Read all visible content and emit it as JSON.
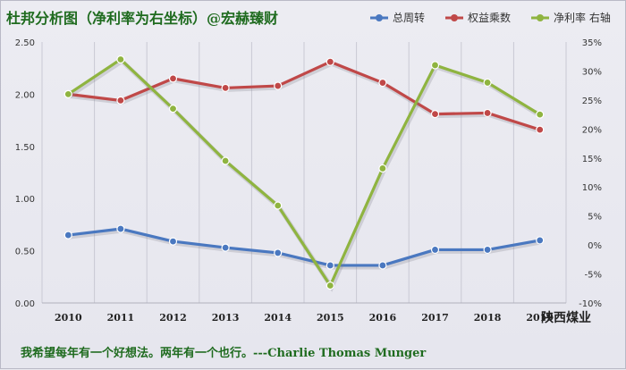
{
  "title": "杜邦分析图（净利率为右坐标）@宏赫臻财",
  "company": "陕西煤业",
  "footer": "我希望每年有一个好想法。两年有一个也行。---Charlie Thomas  Munger",
  "colors": {
    "asset_turnover": "#4a78c0",
    "equity_multiplier": "#c04848",
    "net_margin": "#8fb440",
    "background": "#e8e8ef",
    "title": "#1f6b1f"
  },
  "chart_data": {
    "type": "line",
    "title": "杜邦分析图（净利率为右坐标）@宏赫臻财",
    "x": [
      "2010",
      "2011",
      "2012",
      "2013",
      "2014",
      "2015",
      "2016",
      "2017",
      "2018",
      "2019"
    ],
    "left_axis": {
      "ylim": [
        0,
        2.5
      ],
      "ticks": [
        "0.00",
        "0.50",
        "1.00",
        "1.50",
        "2.00",
        "2.50"
      ]
    },
    "right_axis": {
      "ylim": [
        -10,
        35
      ],
      "ticks": [
        "-10%",
        "-5%",
        "0%",
        "5%",
        "10%",
        "15%",
        "20%",
        "25%",
        "30%",
        "35%"
      ]
    },
    "grid": "vertical",
    "legend_position": "top-right",
    "series": [
      {
        "name": "总周转",
        "axis": "left",
        "color": "#4a78c0",
        "values": [
          0.65,
          0.71,
          0.59,
          0.53,
          0.48,
          0.36,
          0.36,
          0.51,
          0.51,
          0.6
        ]
      },
      {
        "name": "权益乘数",
        "axis": "left",
        "color": "#c04848",
        "values": [
          2.0,
          1.94,
          2.15,
          2.06,
          2.08,
          2.31,
          2.11,
          1.81,
          1.82,
          1.66
        ]
      },
      {
        "name": "净利率 右轴",
        "axis": "right",
        "color": "#8fb440",
        "values": [
          26.0,
          32.0,
          23.5,
          14.5,
          6.8,
          -7.0,
          13.2,
          31.0,
          28.0,
          22.5
        ]
      }
    ]
  }
}
